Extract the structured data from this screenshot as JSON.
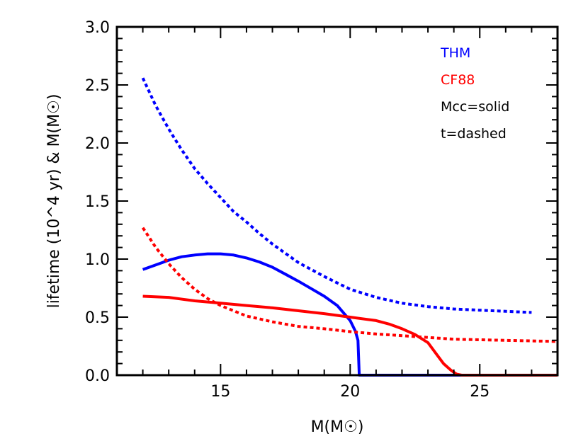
{
  "chart_data": {
    "type": "line",
    "title": "",
    "xlabel": "M(M☉)",
    "ylabel": "lifetime (10^4 yr) & M(M☉)",
    "xlim": [
      11,
      28
    ],
    "ylim": [
      0,
      3
    ],
    "xticks": [
      15,
      20,
      25
    ],
    "xtick_labels": [
      "15",
      "20",
      "25"
    ],
    "yticks": [
      0,
      0.5,
      1,
      1.5,
      2,
      2.5,
      3
    ],
    "ytick_labels": [
      "0.0",
      "0.5",
      "1.0",
      "1.5",
      "2.0",
      "2.5",
      "3.0"
    ],
    "grid": false,
    "legend_position": "top-right",
    "annotations": [
      {
        "text": "THM",
        "color": "#0000ff"
      },
      {
        "text": "CF88",
        "color": "#ff0000"
      },
      {
        "text": "Mcc=solid",
        "color": "#000000"
      },
      {
        "text": "t=dashed",
        "color": "#000000"
      }
    ],
    "series": [
      {
        "color": "#0000ff",
        "style": "solid",
        "x": [
          12,
          12.5,
          13,
          13.5,
          14,
          14.5,
          15,
          15.5,
          16,
          16.5,
          17,
          17.5,
          18,
          18.5,
          19,
          19.5,
          20,
          20.2,
          20.3,
          20.35,
          21,
          22,
          23,
          24,
          25,
          26,
          27
        ],
        "y": [
          0.91,
          0.95,
          0.99,
          1.02,
          1.035,
          1.045,
          1.045,
          1.035,
          1.01,
          0.975,
          0.93,
          0.87,
          0.81,
          0.745,
          0.68,
          0.6,
          0.47,
          0.38,
          0.3,
          0.0,
          0.0,
          0.0,
          0.0,
          0.0,
          0.0,
          0.0,
          0.0
        ]
      },
      {
        "color": "#0000ff",
        "style": "dashed",
        "x": [
          12,
          12.5,
          13,
          13.5,
          14,
          14.5,
          15,
          15.5,
          16,
          16.5,
          17,
          17.5,
          18,
          19,
          20,
          21,
          22,
          23,
          24,
          25,
          26,
          27
        ],
        "y": [
          2.56,
          2.32,
          2.12,
          1.94,
          1.78,
          1.65,
          1.53,
          1.41,
          1.32,
          1.22,
          1.13,
          1.05,
          0.97,
          0.85,
          0.74,
          0.67,
          0.62,
          0.59,
          0.57,
          0.56,
          0.55,
          0.54
        ]
      },
      {
        "color": "#ff0000",
        "style": "solid",
        "x": [
          12,
          13,
          14,
          15,
          16,
          17,
          18,
          19,
          20,
          21,
          21.5,
          22,
          22.5,
          23,
          23.3,
          23.6,
          23.9,
          24.1,
          24.3,
          25,
          26,
          27,
          28
        ],
        "y": [
          0.68,
          0.67,
          0.64,
          0.62,
          0.6,
          0.58,
          0.555,
          0.53,
          0.5,
          0.47,
          0.44,
          0.4,
          0.35,
          0.28,
          0.19,
          0.1,
          0.04,
          0.01,
          0.0,
          0.0,
          0.0,
          0.0,
          0.0
        ]
      },
      {
        "color": "#ff0000",
        "style": "dashed",
        "x": [
          12,
          12.5,
          13,
          13.5,
          14,
          14.5,
          15,
          16,
          17,
          18,
          19,
          20,
          21,
          22,
          23,
          24,
          25,
          26,
          27,
          28
        ],
        "y": [
          1.27,
          1.1,
          0.96,
          0.84,
          0.74,
          0.66,
          0.6,
          0.51,
          0.46,
          0.42,
          0.4,
          0.375,
          0.355,
          0.34,
          0.325,
          0.31,
          0.305,
          0.3,
          0.295,
          0.29
        ]
      }
    ]
  }
}
